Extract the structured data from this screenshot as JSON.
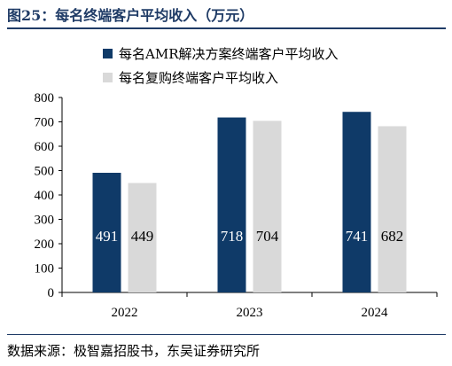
{
  "figure": {
    "title": "图25：每名终端客户平均收入（万元）",
    "source": "数据来源：极智嘉招股书，东吴证券研究所"
  },
  "colors": {
    "series1": "#0f3a68",
    "series2": "#d9d9d9",
    "title": "#1f3b66"
  },
  "chart_data": {
    "type": "bar",
    "categories": [
      "2022",
      "2023",
      "2024"
    ],
    "series": [
      {
        "name": "每名AMR解决方案终端客户平均收入",
        "values": [
          491,
          718,
          741
        ]
      },
      {
        "name": "每名复购终端客户平均收入",
        "values": [
          449,
          704,
          682
        ]
      }
    ],
    "ylim": [
      0,
      800
    ],
    "yticks": [
      0,
      100,
      200,
      300,
      400,
      500,
      600,
      700,
      800
    ],
    "legend_position": "top-left",
    "grid": false,
    "data_labels": "inside-bar"
  }
}
